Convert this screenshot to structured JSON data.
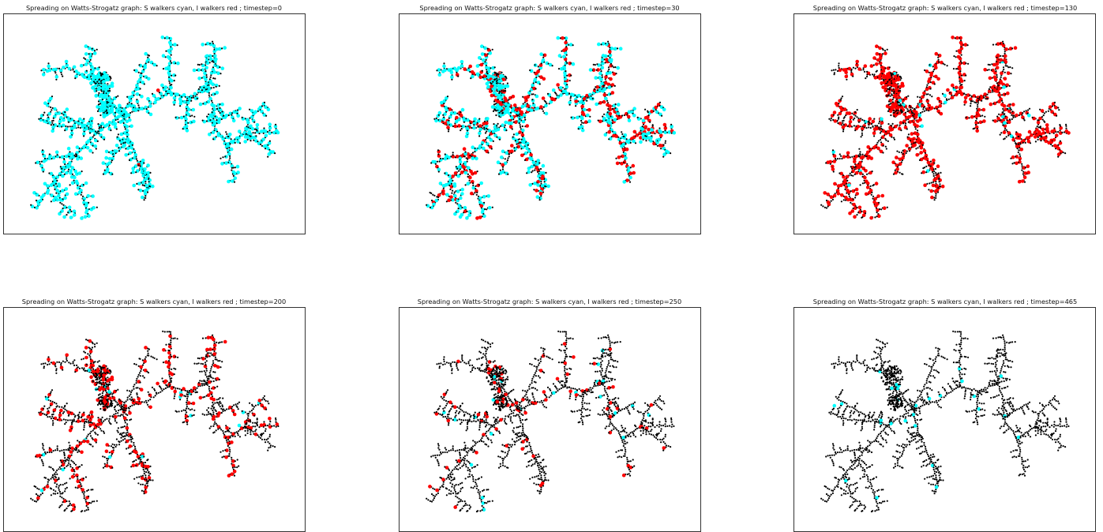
{
  "figure": {
    "panel_titles": [
      "Spreading on Watts-Strogatz graph: S walkers cyan, I walkers red ; timestep=0",
      "Spreading on Watts-Strogatz graph: S walkers cyan, I walkers red ; timestep=30",
      "Spreading on Watts-Strogatz graph: S walkers cyan, I walkers red ; timestep=130",
      "Spreading on Watts-Strogatz graph: S walkers cyan, I walkers red ; timestep=200",
      "Spreading on Watts-Strogatz graph: S walkers cyan, I walkers red ; timestep=250",
      "Spreading on Watts-Strogatz graph: S walkers cyan, I walkers red ; timestep=465"
    ]
  },
  "chart_data": [
    {
      "type": "network",
      "timestep": 0,
      "title": "Spreading on Watts-Strogatz graph: S walkers cyan, I walkers red ; timestep=0",
      "frac_susceptible": 0.92,
      "frac_infected": 0.005,
      "axes_visible": false
    },
    {
      "type": "network",
      "timestep": 30,
      "title": "Spreading on Watts-Strogatz graph: S walkers cyan, I walkers red ; timestep=30",
      "frac_susceptible": 0.6,
      "frac_infected": 0.3,
      "axes_visible": false
    },
    {
      "type": "network",
      "timestep": 130,
      "title": "Spreading on Watts-Strogatz graph: S walkers cyan, I walkers red ; timestep=130",
      "frac_susceptible": 0.03,
      "frac_infected": 0.68,
      "axes_visible": false
    },
    {
      "type": "network",
      "timestep": 200,
      "title": "Spreading on Watts-Strogatz graph: S walkers cyan, I walkers red ; timestep=200",
      "frac_susceptible": 0.02,
      "frac_infected": 0.3,
      "axes_visible": false
    },
    {
      "type": "network",
      "timestep": 250,
      "title": "Spreading on Watts-Strogatz graph: S walkers cyan, I walkers red ; timestep=250",
      "frac_susceptible": 0.03,
      "frac_infected": 0.11,
      "axes_visible": false
    },
    {
      "type": "network",
      "timestep": 465,
      "title": "Spreading on Watts-Strogatz graph: S walkers cyan, I walkers red ; timestep=465",
      "frac_susceptible": 0.04,
      "frac_infected": 0.0,
      "axes_visible": false
    }
  ],
  "colors": {
    "node": "#000000",
    "susceptible": "#00ffff",
    "infected": "#ff0000",
    "frame": "#333333"
  }
}
